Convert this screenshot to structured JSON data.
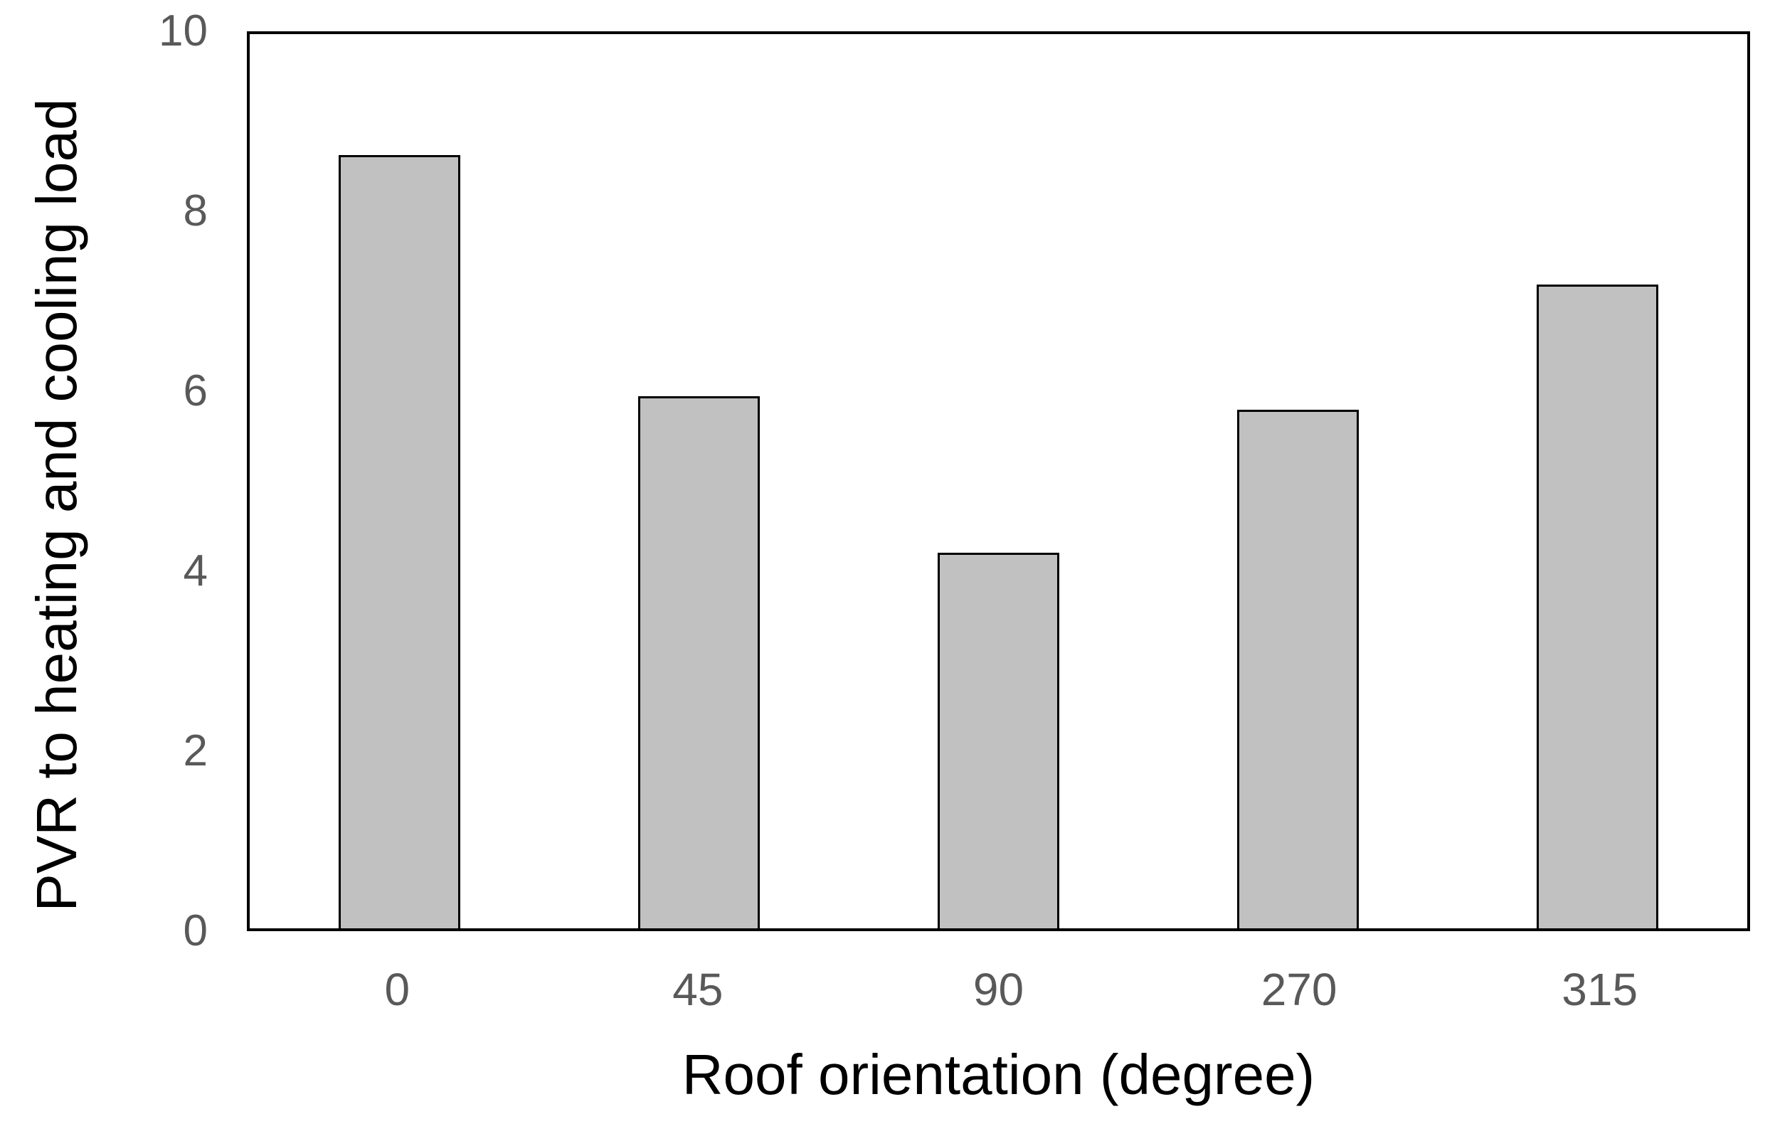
{
  "chart_data": {
    "type": "bar",
    "categories": [
      "0",
      "45",
      "90",
      "270",
      "315"
    ],
    "values": [
      8.65,
      5.95,
      4.2,
      5.8,
      7.2
    ],
    "title": "",
    "xlabel": "Roof orientation (degree)",
    "ylabel": "PVR to heating and cooling load",
    "ylim": [
      0,
      10
    ],
    "yticks": [
      0,
      2,
      4,
      6,
      8,
      10
    ],
    "grid": false,
    "legend": "none",
    "bar_fill_color": "#c1c1c1",
    "bar_border_color": "#000000",
    "plot_border_color": "#000000",
    "tick_label_color": "#595959",
    "axis_title_color": "#000000"
  }
}
